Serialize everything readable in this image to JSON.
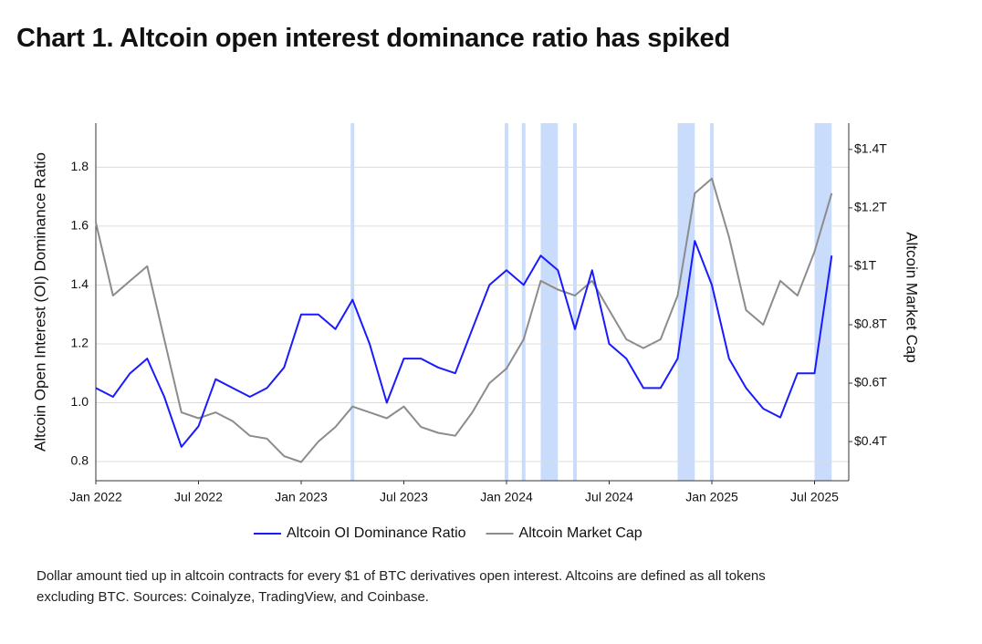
{
  "chart_data": {
    "type": "line",
    "title": "Chart 1. Altcoin open interest dominance ratio has spiked",
    "ylabel": "Altcoin Open Interest (OI) Dominance Ratio",
    "y2label": "Altcoin Market Cap",
    "footnote": "Dollar amount tied up in altcoin contracts for every $1 of BTC derivatives open interest. Altcoins are defined as all tokens excluding BTC. Sources: Coinalyze, TradingView, and Coinbase.",
    "x": [
      "2022-01",
      "2022-02",
      "2022-03",
      "2022-04",
      "2022-05",
      "2022-06",
      "2022-07",
      "2022-08",
      "2022-09",
      "2022-10",
      "2022-11",
      "2022-12",
      "2023-01",
      "2023-02",
      "2023-03",
      "2023-04",
      "2023-05",
      "2023-06",
      "2023-07",
      "2023-08",
      "2023-09",
      "2023-10",
      "2023-11",
      "2023-12",
      "2024-01",
      "2024-02",
      "2024-03",
      "2024-04",
      "2024-05",
      "2024-06",
      "2024-07",
      "2024-08",
      "2024-09",
      "2024-10",
      "2024-11",
      "2024-12",
      "2025-01",
      "2025-02",
      "2025-03",
      "2025-04",
      "2025-05",
      "2025-06",
      "2025-07",
      "2025-08"
    ],
    "series": [
      {
        "name": "Altcoin OI Dominance Ratio",
        "color": "#1a1aff",
        "axis": "y",
        "values": [
          1.05,
          1.02,
          1.1,
          1.15,
          1.02,
          0.85,
          0.92,
          1.08,
          1.05,
          1.02,
          1.05,
          1.12,
          1.3,
          1.3,
          1.25,
          1.35,
          1.2,
          1.0,
          1.15,
          1.15,
          1.12,
          1.1,
          1.25,
          1.4,
          1.45,
          1.4,
          1.5,
          1.45,
          1.25,
          1.45,
          1.2,
          1.15,
          1.05,
          1.05,
          1.15,
          1.55,
          1.4,
          1.15,
          1.05,
          0.98,
          0.95,
          1.1,
          1.1,
          1.5
        ]
      },
      {
        "name": "Altcoin Market Cap",
        "color": "#8c8c8c",
        "axis": "y2",
        "values": [
          1.15,
          0.9,
          0.95,
          1.0,
          0.75,
          0.5,
          0.48,
          0.5,
          0.47,
          0.42,
          0.41,
          0.35,
          0.33,
          0.4,
          0.45,
          0.52,
          0.5,
          0.48,
          0.52,
          0.45,
          0.43,
          0.42,
          0.5,
          0.6,
          0.65,
          0.75,
          0.95,
          0.92,
          0.9,
          0.95,
          0.85,
          0.75,
          0.72,
          0.75,
          0.9,
          1.25,
          1.3,
          1.1,
          0.85,
          0.8,
          0.95,
          0.9,
          1.05,
          1.25
        ]
      }
    ],
    "highlight_periods": [
      {
        "start": "2023-04",
        "end": "2023-04"
      },
      {
        "start": "2024-01",
        "end": "2024-01"
      },
      {
        "start": "2024-02",
        "end": "2024-02"
      },
      {
        "start": "2024-03",
        "end": "2024-04"
      },
      {
        "start": "2024-05",
        "end": "2024-05"
      },
      {
        "start": "2024-11",
        "end": "2024-12"
      },
      {
        "start": "2025-01",
        "end": "2025-01"
      },
      {
        "start": "2025-07",
        "end": "2025-08"
      }
    ],
    "highlight_color": "#c9dcfb",
    "xlim": [
      "2022-01",
      "2025-09"
    ],
    "xticks": [
      {
        "value": "2022-01",
        "label": "Jan 2022"
      },
      {
        "value": "2022-07",
        "label": "Jul 2022"
      },
      {
        "value": "2023-01",
        "label": "Jan 2023"
      },
      {
        "value": "2023-07",
        "label": "Jul 2023"
      },
      {
        "value": "2024-01",
        "label": "Jan 2024"
      },
      {
        "value": "2024-07",
        "label": "Jul 2024"
      },
      {
        "value": "2025-01",
        "label": "Jan 2025"
      },
      {
        "value": "2025-07",
        "label": "Jul 2025"
      }
    ],
    "ylim": [
      0.735,
      1.95
    ],
    "yticks": [
      0.8,
      {
        "value": 1,
        "label": "1.0"
      },
      1.2,
      1.4,
      1.6,
      1.8
    ],
    "y2lim": [
      0.266,
      1.49
    ],
    "y2ticks": [
      {
        "value": 0.4,
        "label": "$0.4T"
      },
      {
        "value": 0.6,
        "label": "$0.6T"
      },
      {
        "value": 0.8,
        "label": "$0.8T"
      },
      {
        "value": 1,
        "label": "$1T"
      },
      {
        "value": 1.2,
        "label": "$1.2T"
      },
      {
        "value": 1.4,
        "label": "$1.4T"
      }
    ],
    "grid": true,
    "legend": "bottom"
  }
}
